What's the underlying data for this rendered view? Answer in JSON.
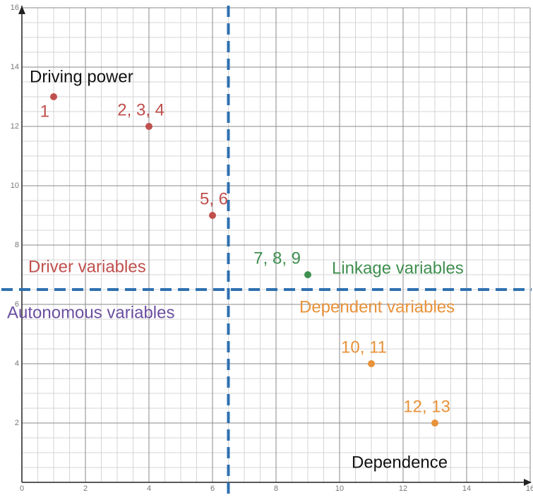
{
  "chart_data": {
    "type": "scatter",
    "xlabel": "Dependence",
    "ylabel": "Driving power",
    "x": [
      1,
      4,
      6,
      9,
      11,
      13
    ],
    "values": [
      13,
      12,
      9,
      7,
      4,
      2
    ],
    "point_labels": [
      "1",
      "2, 3, 4",
      "5, 6",
      "7, 8, 9",
      "10, 11",
      "12, 13"
    ],
    "colors": [
      "#c0504d",
      "#c0504d",
      "#c0504d",
      "#3f8f4f",
      "#e8923a",
      "#e8923a"
    ],
    "thresholds": {
      "x": 6.5,
      "y": 6.5
    },
    "threshold_color": "#2e70b0",
    "annotations": [
      "Driver variables",
      "Linkage variables",
      "Autonomous variables",
      "Dependent variables"
    ],
    "xlim": [
      0,
      16
    ],
    "ylim": [
      0,
      16
    ],
    "xticks": [
      0,
      2,
      4,
      6,
      8,
      10,
      12,
      14,
      16
    ],
    "yticks": [
      2,
      4,
      6,
      8,
      10,
      12,
      14,
      16
    ],
    "grid": true
  }
}
